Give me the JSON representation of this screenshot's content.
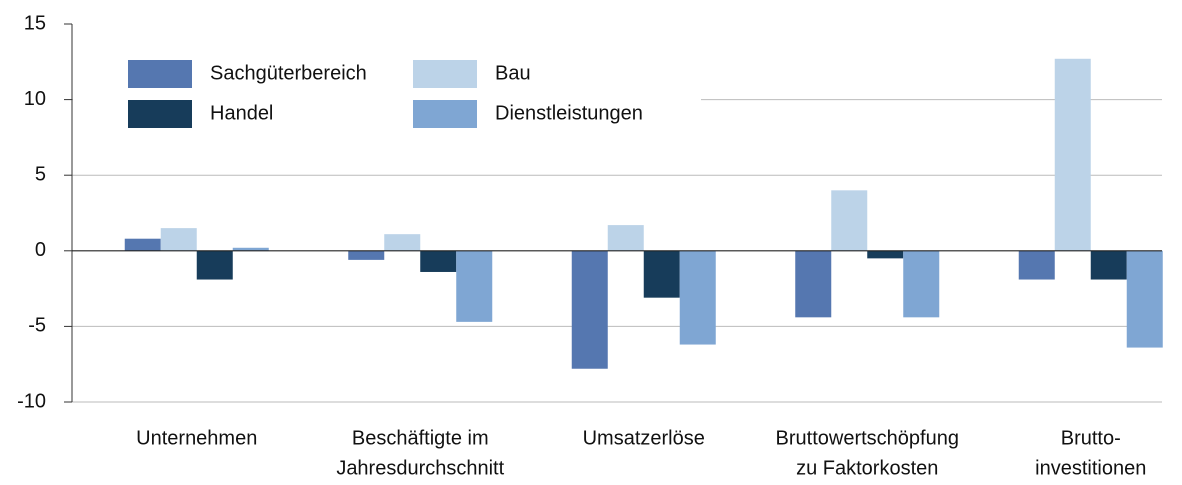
{
  "chart_data": {
    "type": "bar",
    "categories": [
      [
        "Unternehmen"
      ],
      [
        "Beschäftigte im",
        "Jahresdurchschnitt"
      ],
      [
        "Umsatzerlöse"
      ],
      [
        "Bruttowertschöpfung",
        "zu Faktorkosten"
      ],
      [
        "Brutto-",
        "investitionen"
      ]
    ],
    "series": [
      {
        "name": "Sachgüterbereich",
        "color": "#5577b0",
        "values": [
          0.8,
          -0.6,
          -7.8,
          -4.4,
          -1.9
        ]
      },
      {
        "name": "Bau",
        "color": "#bcd3e8",
        "values": [
          1.5,
          1.1,
          1.7,
          4.0,
          12.7
        ]
      },
      {
        "name": "Handel",
        "color": "#173c5a",
        "values": [
          -1.9,
          -1.4,
          -3.1,
          -0.5,
          -1.9
        ]
      },
      {
        "name": "Dienstleistungen",
        "color": "#7fa6d3",
        "values": [
          0.2,
          -4.7,
          -6.2,
          -4.4,
          -6.4
        ]
      }
    ],
    "ylim": [
      -11,
      15
    ],
    "yticks": [
      -10,
      -5,
      0,
      5,
      10,
      15
    ],
    "grid": true,
    "legend": "upper left"
  }
}
